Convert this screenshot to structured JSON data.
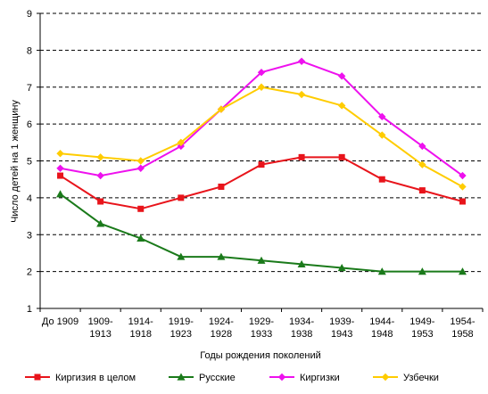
{
  "chart_data": {
    "type": "line",
    "xlabel": "Годы рождения поколений",
    "ylabel": "Число детей на 1 женщину",
    "ylim": [
      1,
      9
    ],
    "yticks": [
      1,
      2,
      3,
      4,
      5,
      6,
      7,
      8,
      9
    ],
    "grid": "horizontal dashed",
    "legend_position": "bottom",
    "categories": [
      [
        "До 1909"
      ],
      [
        "1909-",
        "1913"
      ],
      [
        "1914-",
        "1918"
      ],
      [
        "1919-",
        "1923"
      ],
      [
        "1924-",
        "1928"
      ],
      [
        "1929-",
        "1933"
      ],
      [
        "1934-",
        "1938"
      ],
      [
        "1939-",
        "1943"
      ],
      [
        "1944-",
        "1948"
      ],
      [
        "1949-",
        "1953"
      ],
      [
        "1954-",
        "1958"
      ]
    ],
    "series": [
      {
        "name": "Киргизия в целом",
        "color": "#e8141b",
        "marker": "square",
        "values": [
          4.6,
          3.9,
          3.7,
          4.0,
          4.3,
          4.9,
          5.1,
          5.1,
          4.5,
          4.2,
          3.9
        ]
      },
      {
        "name": "Русские",
        "color": "#1a7a1a",
        "marker": "triangle",
        "values": [
          4.1,
          3.3,
          2.9,
          2.4,
          2.4,
          2.3,
          2.2,
          2.1,
          2.0,
          2.0,
          2.0
        ]
      },
      {
        "name": "Киргизки",
        "color": "#ee11ee",
        "marker": "diamond",
        "values": [
          4.8,
          4.6,
          4.8,
          5.4,
          6.4,
          7.4,
          7.7,
          7.3,
          6.2,
          5.4,
          4.6
        ]
      },
      {
        "name": "Узбечки",
        "color": "#ffcc00",
        "marker": "diamond",
        "values": [
          5.2,
          5.1,
          5.0,
          5.5,
          6.4,
          7.0,
          6.8,
          6.5,
          5.7,
          4.9,
          4.3
        ]
      }
    ]
  }
}
